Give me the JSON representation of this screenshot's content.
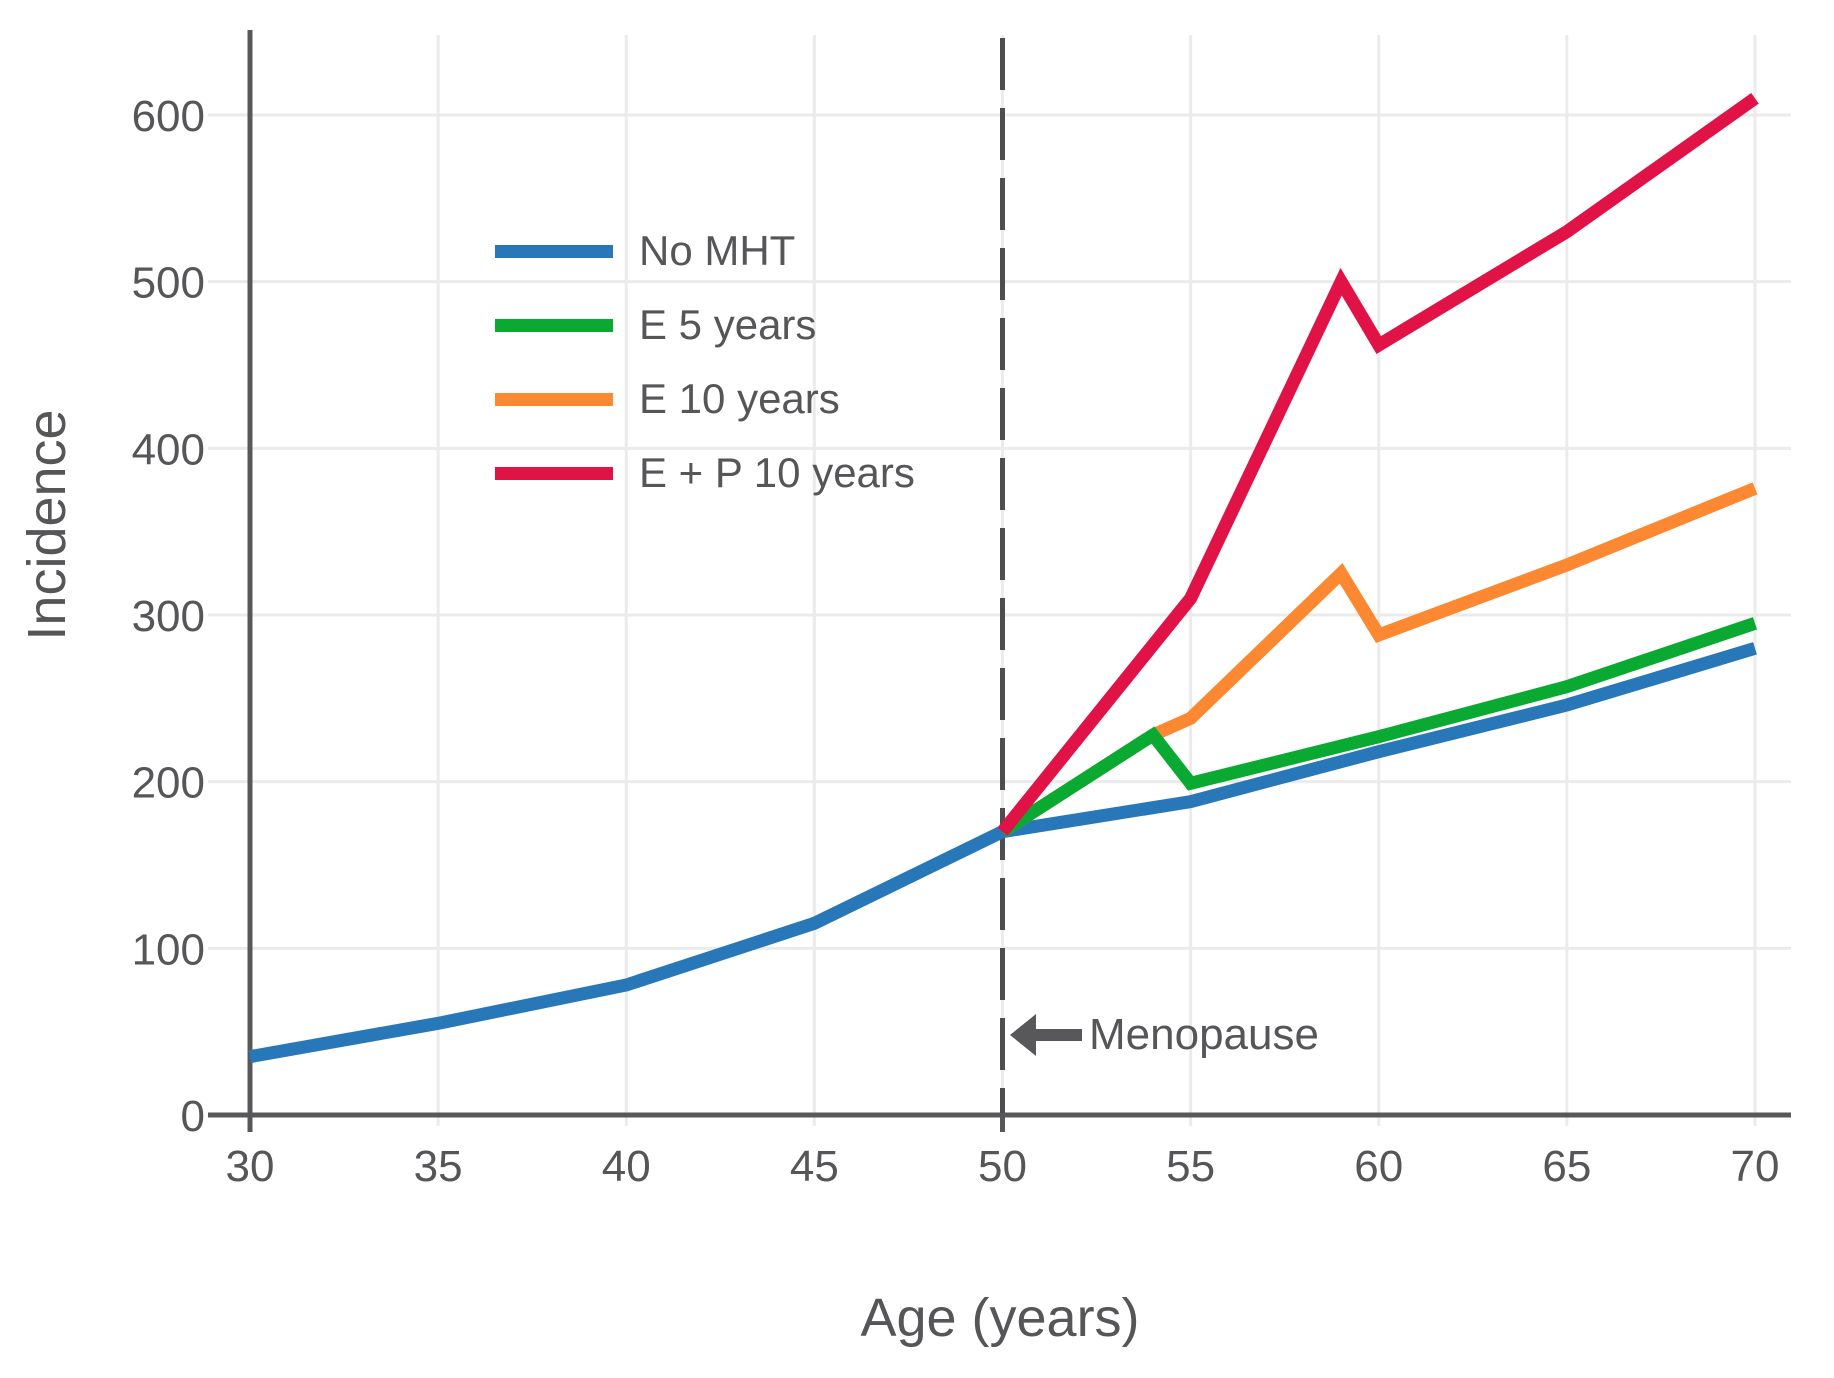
{
  "chart_data": {
    "type": "line",
    "title": "",
    "xlabel": "Age (years)",
    "ylabel": "Incidence",
    "xlim": [
      30,
      70
    ],
    "ylim": [
      0,
      600
    ],
    "xticks": [
      30,
      35,
      40,
      45,
      50,
      55,
      60,
      65,
      70
    ],
    "yticks": [
      0,
      100,
      200,
      300,
      400,
      500,
      600
    ],
    "grid": true,
    "legend_position": "upper-left-inside",
    "reference_line": {
      "x": 50,
      "style": "dashed"
    },
    "annotation": {
      "text": "Menopause",
      "arrow": "left",
      "at_x": 50,
      "at_y": 51
    },
    "series": [
      {
        "name": "No MHT",
        "color": "#2878b9",
        "points": [
          [
            30,
            35
          ],
          [
            35,
            55
          ],
          [
            40,
            78
          ],
          [
            45,
            115
          ],
          [
            50,
            170
          ],
          [
            55,
            188
          ],
          [
            60,
            218
          ],
          [
            65,
            246
          ],
          [
            70,
            280
          ]
        ]
      },
      {
        "name": "E 5 years",
        "color": "#0aaa32",
        "points": [
          [
            50,
            170
          ],
          [
            54,
            228
          ],
          [
            55,
            199
          ],
          [
            60,
            227
          ],
          [
            65,
            257
          ],
          [
            70,
            295
          ]
        ]
      },
      {
        "name": "E 10 years",
        "color": "#fd8832",
        "points": [
          [
            50,
            170
          ],
          [
            54,
            228
          ],
          [
            55,
            238
          ],
          [
            59,
            325
          ],
          [
            60,
            288
          ],
          [
            65,
            330
          ],
          [
            70,
            376
          ]
        ]
      },
      {
        "name": "E + P 10 years",
        "color": "#e11245",
        "points": [
          [
            50,
            170
          ],
          [
            55,
            310
          ],
          [
            59,
            500
          ],
          [
            60,
            462
          ],
          [
            65,
            530
          ],
          [
            70,
            610
          ]
        ]
      }
    ],
    "colors": {
      "axis": "#58585a",
      "grid": "#ebebeb",
      "text": "#565659",
      "dashed_line": "#4d4d4f"
    }
  }
}
